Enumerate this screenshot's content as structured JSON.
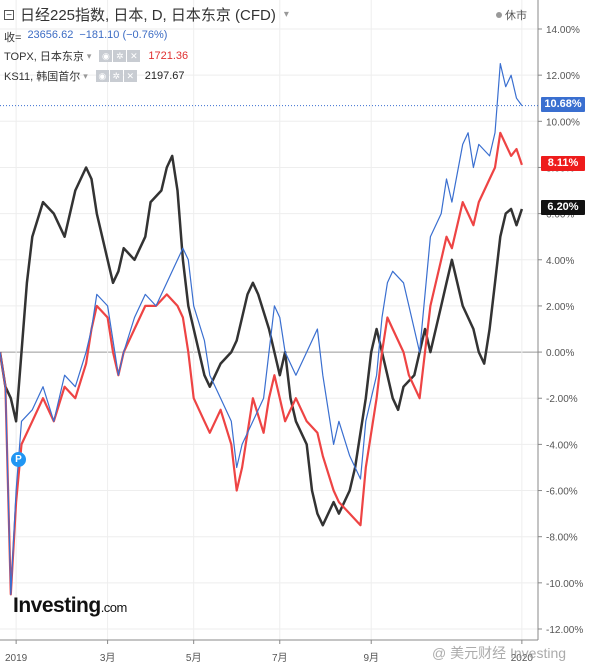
{
  "header": {
    "title": "日经225指数, 日本, D, 日本东京 (CFD)",
    "status": "休市"
  },
  "quote": {
    "label": "收=",
    "price": "23656.62",
    "change": "−181.10 (−0.76%)"
  },
  "compare": [
    {
      "name": "TOPX, 日本东京",
      "value": "1721.36",
      "color": "#e03030"
    },
    {
      "name": "KS11, 韩国首尔",
      "value": "2197.67",
      "color": "#222222"
    }
  ],
  "price_labels": {
    "nikkei": "10.68%",
    "topx": "8.11%",
    "ks11": "6.20%"
  },
  "event_badge": "P",
  "logo": {
    "main": "Investing",
    "suffix": ".com"
  },
  "watermark": "@ 美元财经 Investing",
  "colors": {
    "nikkei": "#3a6fd0",
    "topx": "#ee4444",
    "ks11": "#333333",
    "axis_text": "#555555",
    "grid": "#eeeeee",
    "zero_line": "#999999"
  },
  "chart_data": {
    "type": "line",
    "ylim": [
      -12.5,
      14.5
    ],
    "yticks": [
      "14.00%",
      "12.00%",
      "10.00%",
      "8.00%",
      "6.00%",
      "4.00%",
      "2.00%",
      "0.00%",
      "-2.00%",
      "-4.00%",
      "-6.00%",
      "-8.00%",
      "-10.00%",
      "-12.00%"
    ],
    "ytick_values": [
      14,
      12,
      10,
      8,
      6,
      4,
      2,
      0,
      -2,
      -4,
      -6,
      -8,
      -10,
      -12
    ],
    "xticks": [
      "2019",
      "3月",
      "5月",
      "7月",
      "9月",
      "2020"
    ],
    "xtick_positions": [
      0.03,
      0.2,
      0.36,
      0.52,
      0.69,
      0.97
    ],
    "series": [
      {
        "name": "日经225指数",
        "key": "nikkei",
        "points": [
          [
            0,
            0
          ],
          [
            0.01,
            -1.5
          ],
          [
            0.02,
            -10.5
          ],
          [
            0.03,
            -6
          ],
          [
            0.04,
            -3
          ],
          [
            0.06,
            -2.5
          ],
          [
            0.08,
            -1.5
          ],
          [
            0.1,
            -3
          ],
          [
            0.12,
            -1
          ],
          [
            0.14,
            -1.5
          ],
          [
            0.16,
            0
          ],
          [
            0.17,
            1
          ],
          [
            0.18,
            2.5
          ],
          [
            0.2,
            2
          ],
          [
            0.21,
            0.5
          ],
          [
            0.22,
            -1
          ],
          [
            0.23,
            0
          ],
          [
            0.25,
            1.5
          ],
          [
            0.27,
            2.5
          ],
          [
            0.29,
            2
          ],
          [
            0.31,
            3
          ],
          [
            0.33,
            4
          ],
          [
            0.34,
            4.5
          ],
          [
            0.35,
            4
          ],
          [
            0.36,
            2
          ],
          [
            0.38,
            0.5
          ],
          [
            0.39,
            -1
          ],
          [
            0.41,
            -2
          ],
          [
            0.43,
            -3
          ],
          [
            0.44,
            -5
          ],
          [
            0.45,
            -4
          ],
          [
            0.47,
            -3
          ],
          [
            0.49,
            -2
          ],
          [
            0.5,
            0
          ],
          [
            0.51,
            2
          ],
          [
            0.52,
            1.5
          ],
          [
            0.53,
            0
          ],
          [
            0.55,
            -1
          ],
          [
            0.57,
            0
          ],
          [
            0.59,
            1
          ],
          [
            0.6,
            -1
          ],
          [
            0.62,
            -4
          ],
          [
            0.63,
            -3
          ],
          [
            0.65,
            -4.5
          ],
          [
            0.67,
            -5.5
          ],
          [
            0.68,
            -3
          ],
          [
            0.7,
            -1
          ],
          [
            0.71,
            1.5
          ],
          [
            0.72,
            3
          ],
          [
            0.73,
            3.5
          ],
          [
            0.75,
            3
          ],
          [
            0.76,
            2
          ],
          [
            0.78,
            0
          ],
          [
            0.8,
            5
          ],
          [
            0.82,
            6
          ],
          [
            0.83,
            7.5
          ],
          [
            0.84,
            6.5
          ],
          [
            0.86,
            9
          ],
          [
            0.87,
            9.5
          ],
          [
            0.88,
            8
          ],
          [
            0.89,
            9
          ],
          [
            0.91,
            8.5
          ],
          [
            0.92,
            9.5
          ],
          [
            0.93,
            12.5
          ],
          [
            0.94,
            11.5
          ],
          [
            0.95,
            12
          ],
          [
            0.96,
            11
          ],
          [
            0.97,
            10.68
          ]
        ]
      },
      {
        "name": "TOPX, 日本东京",
        "key": "topx",
        "points": [
          [
            0,
            0
          ],
          [
            0.01,
            -1.5
          ],
          [
            0.02,
            -10.5
          ],
          [
            0.03,
            -6.5
          ],
          [
            0.04,
            -4
          ],
          [
            0.06,
            -3
          ],
          [
            0.08,
            -2
          ],
          [
            0.1,
            -3
          ],
          [
            0.12,
            -1.5
          ],
          [
            0.14,
            -2
          ],
          [
            0.16,
            -0.5
          ],
          [
            0.17,
            1
          ],
          [
            0.18,
            2
          ],
          [
            0.2,
            1.5
          ],
          [
            0.21,
            0
          ],
          [
            0.22,
            -1
          ],
          [
            0.23,
            0
          ],
          [
            0.25,
            1
          ],
          [
            0.27,
            2
          ],
          [
            0.29,
            2
          ],
          [
            0.31,
            2.5
          ],
          [
            0.33,
            2
          ],
          [
            0.34,
            1.5
          ],
          [
            0.35,
            0
          ],
          [
            0.36,
            -2
          ],
          [
            0.38,
            -3
          ],
          [
            0.39,
            -3.5
          ],
          [
            0.41,
            -2.5
          ],
          [
            0.43,
            -4
          ],
          [
            0.44,
            -6
          ],
          [
            0.45,
            -5
          ],
          [
            0.47,
            -2
          ],
          [
            0.49,
            -3.5
          ],
          [
            0.5,
            -2
          ],
          [
            0.51,
            -1
          ],
          [
            0.52,
            -2
          ],
          [
            0.53,
            -3
          ],
          [
            0.55,
            -2
          ],
          [
            0.57,
            -3
          ],
          [
            0.59,
            -3.5
          ],
          [
            0.6,
            -4.5
          ],
          [
            0.62,
            -6
          ],
          [
            0.63,
            -6.5
          ],
          [
            0.65,
            -7
          ],
          [
            0.67,
            -7.5
          ],
          [
            0.68,
            -5
          ],
          [
            0.7,
            -2
          ],
          [
            0.71,
            0
          ],
          [
            0.72,
            1.5
          ],
          [
            0.73,
            1
          ],
          [
            0.75,
            0
          ],
          [
            0.76,
            -1
          ],
          [
            0.78,
            -2
          ],
          [
            0.8,
            2
          ],
          [
            0.82,
            4
          ],
          [
            0.83,
            5
          ],
          [
            0.84,
            4.5
          ],
          [
            0.86,
            6.5
          ],
          [
            0.87,
            6
          ],
          [
            0.88,
            5.5
          ],
          [
            0.89,
            6.5
          ],
          [
            0.91,
            7.5
          ],
          [
            0.92,
            8
          ],
          [
            0.93,
            9.5
          ],
          [
            0.94,
            9
          ],
          [
            0.95,
            8.5
          ],
          [
            0.96,
            8.8
          ],
          [
            0.97,
            8.11
          ]
        ]
      },
      {
        "name": "KS11, 韩国首尔",
        "key": "ks11",
        "points": [
          [
            0,
            0
          ],
          [
            0.01,
            -1.5
          ],
          [
            0.02,
            -2
          ],
          [
            0.03,
            -3
          ],
          [
            0.04,
            0
          ],
          [
            0.05,
            3
          ],
          [
            0.06,
            5
          ],
          [
            0.08,
            6.5
          ],
          [
            0.1,
            6
          ],
          [
            0.12,
            5
          ],
          [
            0.14,
            7
          ],
          [
            0.16,
            8
          ],
          [
            0.17,
            7.5
          ],
          [
            0.18,
            6
          ],
          [
            0.19,
            5
          ],
          [
            0.2,
            4
          ],
          [
            0.21,
            3
          ],
          [
            0.22,
            3.5
          ],
          [
            0.23,
            4.5
          ],
          [
            0.25,
            4
          ],
          [
            0.27,
            5
          ],
          [
            0.28,
            6.5
          ],
          [
            0.3,
            7
          ],
          [
            0.31,
            8
          ],
          [
            0.32,
            8.5
          ],
          [
            0.33,
            7
          ],
          [
            0.34,
            4
          ],
          [
            0.35,
            2
          ],
          [
            0.36,
            1
          ],
          [
            0.37,
            0
          ],
          [
            0.38,
            -1
          ],
          [
            0.39,
            -1.5
          ],
          [
            0.41,
            -0.5
          ],
          [
            0.43,
            0
          ],
          [
            0.44,
            0.5
          ],
          [
            0.45,
            1.5
          ],
          [
            0.46,
            2.5
          ],
          [
            0.47,
            3
          ],
          [
            0.48,
            2.5
          ],
          [
            0.5,
            1
          ],
          [
            0.51,
            0
          ],
          [
            0.52,
            -1
          ],
          [
            0.53,
            0
          ],
          [
            0.54,
            -2
          ],
          [
            0.55,
            -3
          ],
          [
            0.57,
            -4
          ],
          [
            0.58,
            -6
          ],
          [
            0.59,
            -7
          ],
          [
            0.6,
            -7.5
          ],
          [
            0.62,
            -6.5
          ],
          [
            0.63,
            -7
          ],
          [
            0.65,
            -6
          ],
          [
            0.66,
            -5
          ],
          [
            0.68,
            -2
          ],
          [
            0.69,
            0
          ],
          [
            0.7,
            1
          ],
          [
            0.71,
            0
          ],
          [
            0.72,
            -1
          ],
          [
            0.73,
            -2
          ],
          [
            0.74,
            -2.5
          ],
          [
            0.75,
            -1.5
          ],
          [
            0.77,
            -1
          ],
          [
            0.78,
            0
          ],
          [
            0.79,
            1
          ],
          [
            0.8,
            0
          ],
          [
            0.82,
            2
          ],
          [
            0.83,
            3
          ],
          [
            0.84,
            4
          ],
          [
            0.85,
            3
          ],
          [
            0.86,
            2
          ],
          [
            0.87,
            1.5
          ],
          [
            0.88,
            1
          ],
          [
            0.89,
            0
          ],
          [
            0.9,
            -0.5
          ],
          [
            0.91,
            1
          ],
          [
            0.92,
            3
          ],
          [
            0.93,
            5
          ],
          [
            0.94,
            6
          ],
          [
            0.95,
            6.2
          ],
          [
            0.96,
            5.5
          ],
          [
            0.97,
            6.2
          ]
        ]
      }
    ]
  }
}
